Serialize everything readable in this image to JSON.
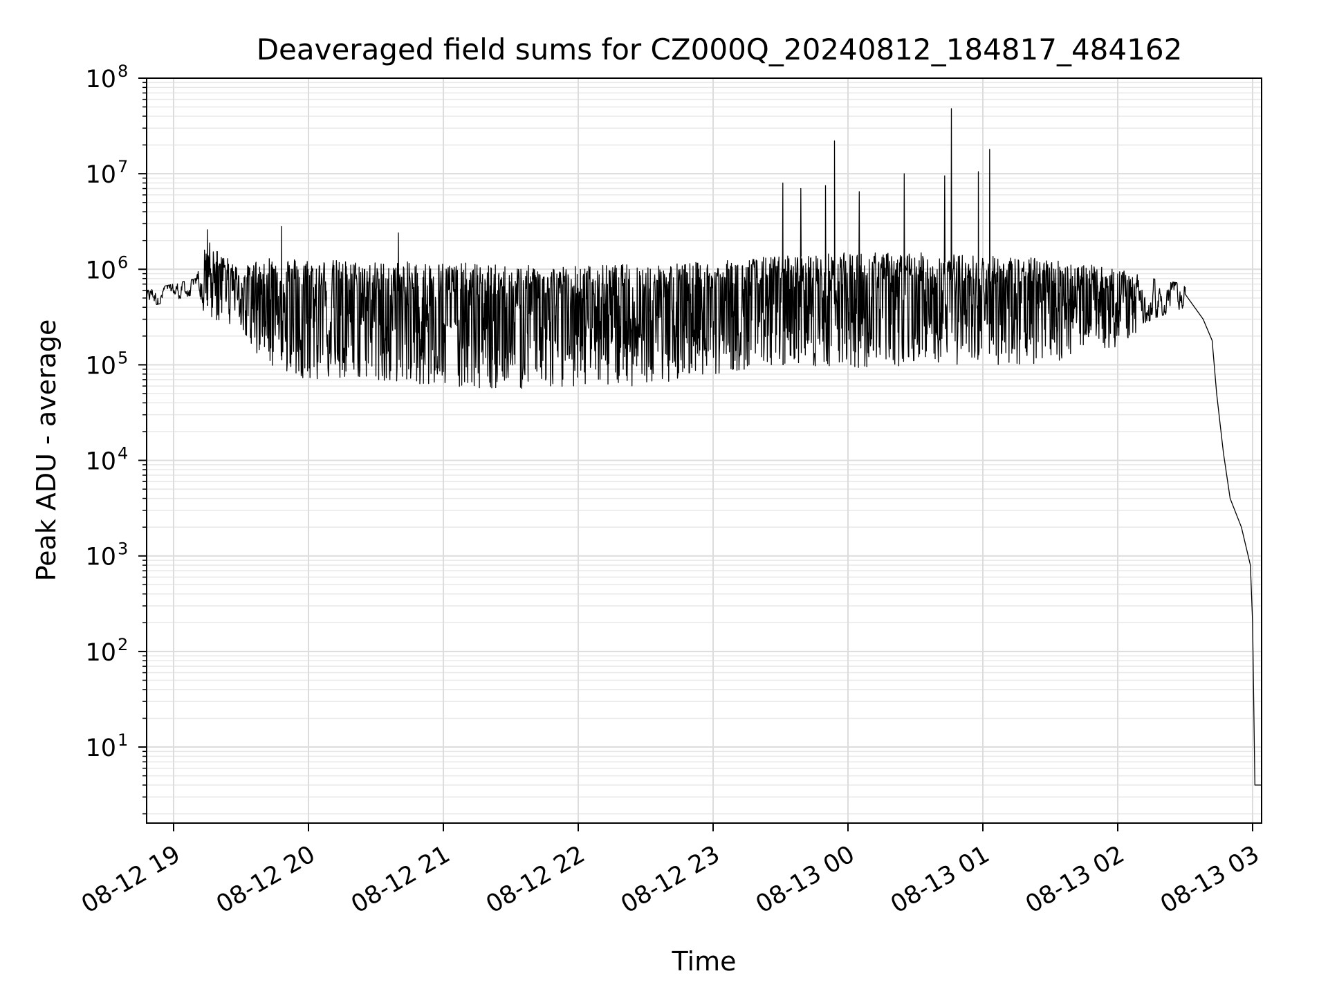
{
  "chart_data": {
    "type": "line",
    "title": "Deaveraged field sums for CZ000Q_20240812_184817_484162",
    "xlabel": "Time",
    "ylabel": "Peak ADU - average",
    "yscale": "log",
    "ylim": [
      1.6,
      100000000
    ],
    "xlim": [
      "2024-08-12 18:48",
      "2024-08-13 03:04"
    ],
    "grid": true,
    "line_color": "#000000",
    "x_ticks": [
      {
        "t": "2024-08-12 19:00",
        "label": "08-12 19"
      },
      {
        "t": "2024-08-12 20:00",
        "label": "08-12 20"
      },
      {
        "t": "2024-08-12 21:00",
        "label": "08-12 21"
      },
      {
        "t": "2024-08-12 22:00",
        "label": "08-12 22"
      },
      {
        "t": "2024-08-12 23:00",
        "label": "08-12 23"
      },
      {
        "t": "2024-08-13 00:00",
        "label": "08-13 00"
      },
      {
        "t": "2024-08-13 01:00",
        "label": "08-13 01"
      },
      {
        "t": "2024-08-13 02:00",
        "label": "08-13 02"
      },
      {
        "t": "2024-08-13 03:00",
        "label": "08-13 03"
      }
    ],
    "y_ticks": [
      {
        "exp": 1,
        "base": "10",
        "sup": "1"
      },
      {
        "exp": 2,
        "base": "10",
        "sup": "2"
      },
      {
        "exp": 3,
        "base": "10",
        "sup": "3"
      },
      {
        "exp": 4,
        "base": "10",
        "sup": "4"
      },
      {
        "exp": 5,
        "base": "10",
        "sup": "5"
      },
      {
        "exp": 6,
        "base": "10",
        "sup": "6"
      },
      {
        "exp": 7,
        "base": "10",
        "sup": "7"
      },
      {
        "exp": 8,
        "base": "10",
        "sup": "8"
      }
    ],
    "envelope": {
      "description_segments": [
        {
          "t": "2024-08-12 18:48",
          "low": 400000,
          "high": 600000
        },
        {
          "t": "2024-08-12 19:10",
          "low": 550000,
          "high": 800000
        },
        {
          "t": "2024-08-12 19:15",
          "low": 300000,
          "high": 2000000
        },
        {
          "t": "2024-08-12 19:30",
          "low": 250000,
          "high": 1000000
        },
        {
          "t": "2024-08-12 19:40",
          "low": 100000,
          "high": 1400000
        },
        {
          "t": "2024-08-12 20:00",
          "low": 70000,
          "high": 1300000
        },
        {
          "t": "2024-08-12 20:30",
          "low": 70000,
          "high": 1200000
        },
        {
          "t": "2024-08-12 21:00",
          "low": 60000,
          "high": 1200000
        },
        {
          "t": "2024-08-12 21:30",
          "low": 55000,
          "high": 1100000
        },
        {
          "t": "2024-08-12 22:00",
          "low": 60000,
          "high": 1100000
        },
        {
          "t": "2024-08-12 22:30",
          "low": 60000,
          "high": 1150000
        },
        {
          "t": "2024-08-12 23:00",
          "low": 80000,
          "high": 1200000
        },
        {
          "t": "2024-08-12 23:30",
          "low": 100000,
          "high": 1400000
        },
        {
          "t": "2024-08-13 00:00",
          "low": 90000,
          "high": 1500000
        },
        {
          "t": "2024-08-13 00:30",
          "low": 100000,
          "high": 1500000
        },
        {
          "t": "2024-08-13 01:00",
          "low": 100000,
          "high": 1400000
        },
        {
          "t": "2024-08-13 01:30",
          "low": 100000,
          "high": 1300000
        },
        {
          "t": "2024-08-13 02:00",
          "low": 150000,
          "high": 1000000
        },
        {
          "t": "2024-08-13 02:15",
          "low": 300000,
          "high": 800000
        },
        {
          "t": "2024-08-13 02:30",
          "low": 400000,
          "high": 700000
        }
      ]
    },
    "spikes": [
      {
        "t": "2024-08-12 19:15",
        "y": 2600000
      },
      {
        "t": "2024-08-12 19:48",
        "y": 2800000
      },
      {
        "t": "2024-08-12 20:40",
        "y": 2400000
      },
      {
        "t": "2024-08-12 23:31",
        "y": 8000000
      },
      {
        "t": "2024-08-12 23:39",
        "y": 7000000
      },
      {
        "t": "2024-08-12 23:50",
        "y": 7500000
      },
      {
        "t": "2024-08-12 23:54",
        "y": 22000000
      },
      {
        "t": "2024-08-13 00:05",
        "y": 6500000
      },
      {
        "t": "2024-08-13 00:25",
        "y": 10000000
      },
      {
        "t": "2024-08-13 00:43",
        "y": 9500000
      },
      {
        "t": "2024-08-13 00:46",
        "y": 48000000
      },
      {
        "t": "2024-08-13 00:58",
        "y": 10500000
      },
      {
        "t": "2024-08-13 01:03",
        "y": 18000000
      }
    ],
    "tail": [
      {
        "t": "2024-08-13 02:30",
        "y": 550000
      },
      {
        "t": "2024-08-13 02:38",
        "y": 300000
      },
      {
        "t": "2024-08-13 02:42",
        "y": 180000
      },
      {
        "t": "2024-08-13 02:44",
        "y": 50000
      },
      {
        "t": "2024-08-13 02:47",
        "y": 12000
      },
      {
        "t": "2024-08-13 02:50",
        "y": 4000
      },
      {
        "t": "2024-08-13 02:55",
        "y": 2000
      },
      {
        "t": "2024-08-13 02:59",
        "y": 800
      },
      {
        "t": "2024-08-13 03:00",
        "y": 200
      },
      {
        "t": "2024-08-13 03:01",
        "y": 4
      },
      {
        "t": "2024-08-13 03:04",
        "y": 4
      }
    ]
  }
}
